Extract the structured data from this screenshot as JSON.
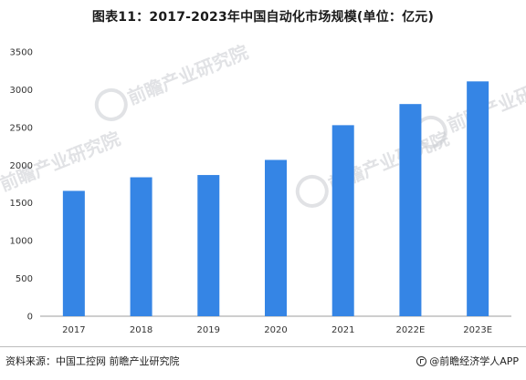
{
  "chart_data": {
    "type": "bar",
    "title": "图表11：2017-2023年中国自动化市场规模(单位：亿元)",
    "categories": [
      "2017",
      "2018",
      "2019",
      "2020",
      "2021",
      "2022E",
      "2023E"
    ],
    "series": [
      {
        "values": [
          1660,
          1840,
          1870,
          2070,
          2530,
          2810,
          3110
        ]
      }
    ],
    "ylim": [
      0,
      3500
    ],
    "yticks": [
      0,
      500,
      1000,
      1500,
      2000,
      2500,
      3000,
      3500
    ],
    "bar_color": "#3585e5",
    "grid": false,
    "legend": "none"
  },
  "watermark": {
    "text": "前瞻产业研究院",
    "color": "#c9ccd1"
  },
  "footer": {
    "source": "资料来源：中国工控网 前瞻产业研究院",
    "brand": "@前瞻经济学人APP",
    "brand_icon": "qianzhan-logo-icon"
  }
}
